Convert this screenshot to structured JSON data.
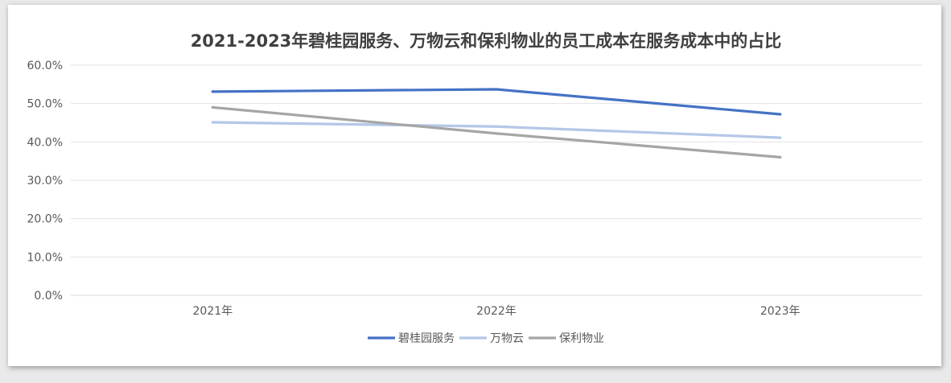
{
  "chart_data": {
    "type": "line",
    "title": "2021-2023年碧桂园服务、万物云和保利物业的员工成本在服务成本中的占比",
    "xlabel": "",
    "ylabel": "",
    "categories": [
      "2021年",
      "2022年",
      "2023年"
    ],
    "y_ticks": [
      "0.0%",
      "10.0%",
      "20.0%",
      "30.0%",
      "40.0%",
      "50.0%",
      "60.0%"
    ],
    "ylim": [
      0,
      60
    ],
    "grid": true,
    "legend_position": "bottom",
    "series": [
      {
        "name": "碧桂园服务",
        "color": "#4472c4",
        "values": [
          53.1,
          53.7,
          47.2
        ]
      },
      {
        "name": "万物云",
        "color": "#b4c7e7",
        "values": [
          45.1,
          44.0,
          41.1
        ]
      },
      {
        "name": "保利物业",
        "color": "#a5a5a5",
        "values": [
          49.0,
          42.2,
          36.0
        ]
      }
    ]
  }
}
